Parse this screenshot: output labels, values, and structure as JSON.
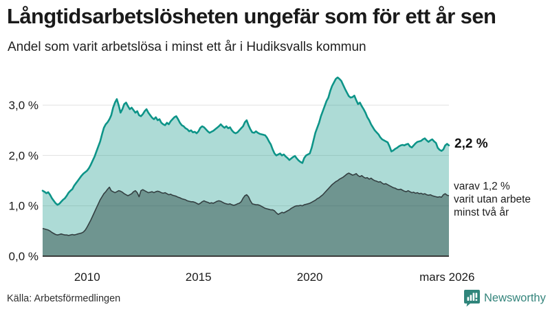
{
  "header": {
    "title": "Långtidsarbetslösheten ungefär som för ett år sen",
    "subtitle": "Andel som varit arbetslösa i minst ett år i Hudiksvalls kommun"
  },
  "annotations": {
    "latest_value": "2,2 %",
    "subset_line1": "varav 1,2 %",
    "subset_line2": "varit utan arbete",
    "subset_line3": "minst två år"
  },
  "footer": {
    "source": "Källa: Arbetsförmedlingen",
    "brand": "Newsworthy",
    "brand_icon": "bar-chart-speech-bubble-icon"
  },
  "colors": {
    "accent_teal": "#0d9488",
    "area_light": "rgba(21,153,138,0.35)",
    "area_dark": "rgba(31,59,55,0.44)",
    "dark_line": "#333f41",
    "grid": "#e0e0e0",
    "baseline": "#3a3a3a",
    "text": "#1a1a1a",
    "brand_teal": "#2f857b"
  },
  "chart_data": {
    "type": "area",
    "title": "Långtidsarbetslösheten ungefär som för ett år sen",
    "subtitle": "Andel som varit arbetslösa i minst ett år i Hudiksvalls kommun",
    "unit": "%",
    "x_domain": [
      2008.0,
      2026.25
    ],
    "x_step_years": 0.0833333,
    "ylim": [
      0,
      3.8
    ],
    "grid": true,
    "legend_position": "right-annotations",
    "y_ticks": [
      {
        "value": 0,
        "label": "0,0 %"
      },
      {
        "value": 1,
        "label": "1,0 %"
      },
      {
        "value": 2,
        "label": "2,0 %"
      },
      {
        "value": 3,
        "label": "3,0 %"
      }
    ],
    "x_ticks": [
      {
        "year": 2010.0,
        "label": "2010"
      },
      {
        "year": 2015.0,
        "label": "2015"
      },
      {
        "year": 2020.0,
        "label": "2020"
      },
      {
        "year": 2026.167,
        "label": "mars 2026"
      }
    ],
    "series": [
      {
        "name": "Arbetslösa minst ett år",
        "end_label": "2,2 %",
        "line_color": "#0d9488",
        "fill_color": "rgba(21,153,138,0.35)",
        "values": [
          1.3,
          1.28,
          1.25,
          1.27,
          1.22,
          1.15,
          1.1,
          1.05,
          1.02,
          1.04,
          1.08,
          1.12,
          1.15,
          1.2,
          1.26,
          1.3,
          1.33,
          1.4,
          1.45,
          1.5,
          1.55,
          1.6,
          1.64,
          1.67,
          1.7,
          1.75,
          1.82,
          1.9,
          1.98,
          2.08,
          2.18,
          2.28,
          2.42,
          2.55,
          2.62,
          2.66,
          2.72,
          2.8,
          2.95,
          3.05,
          3.12,
          3.0,
          2.85,
          2.92,
          3.02,
          3.05,
          2.98,
          2.92,
          2.95,
          2.9,
          2.85,
          2.88,
          2.8,
          2.78,
          2.82,
          2.88,
          2.92,
          2.85,
          2.8,
          2.75,
          2.72,
          2.76,
          2.7,
          2.72,
          2.65,
          2.62,
          2.6,
          2.65,
          2.62,
          2.68,
          2.72,
          2.76,
          2.78,
          2.72,
          2.65,
          2.6,
          2.58,
          2.54,
          2.52,
          2.48,
          2.5,
          2.46,
          2.47,
          2.44,
          2.48,
          2.55,
          2.58,
          2.56,
          2.52,
          2.48,
          2.45,
          2.47,
          2.49,
          2.52,
          2.55,
          2.58,
          2.62,
          2.58,
          2.55,
          2.58,
          2.54,
          2.56,
          2.5,
          2.46,
          2.44,
          2.46,
          2.5,
          2.54,
          2.58,
          2.66,
          2.7,
          2.6,
          2.52,
          2.46,
          2.45,
          2.48,
          2.45,
          2.43,
          2.42,
          2.41,
          2.4,
          2.35,
          2.28,
          2.22,
          2.12,
          2.04,
          2.0,
          2.02,
          2.04,
          2.0,
          2.02,
          1.98,
          1.95,
          1.91,
          1.94,
          1.97,
          1.99,
          1.94,
          1.9,
          1.87,
          1.85,
          1.95,
          2.0,
          2.02,
          2.04,
          2.15,
          2.3,
          2.45,
          2.55,
          2.65,
          2.78,
          2.88,
          2.98,
          3.08,
          3.15,
          3.28,
          3.38,
          3.45,
          3.52,
          3.55,
          3.52,
          3.48,
          3.4,
          3.32,
          3.25,
          3.18,
          3.15,
          3.16,
          3.19,
          3.1,
          3.02,
          3.05,
          2.98,
          2.92,
          2.85,
          2.76,
          2.7,
          2.62,
          2.56,
          2.5,
          2.46,
          2.42,
          2.36,
          2.32,
          2.3,
          2.28,
          2.26,
          2.18,
          2.08,
          2.1,
          2.13,
          2.15,
          2.18,
          2.2,
          2.21,
          2.2,
          2.22,
          2.23,
          2.18,
          2.16,
          2.2,
          2.24,
          2.27,
          2.28,
          2.29,
          2.32,
          2.34,
          2.3,
          2.27,
          2.3,
          2.32,
          2.28,
          2.25,
          2.15,
          2.11,
          2.09,
          2.12,
          2.2,
          2.23,
          2.2
        ]
      },
      {
        "name": "varav utan arbete minst två år",
        "end_label": "varav 1,2 % varit utan arbete minst två år",
        "line_color": "#333f41",
        "fill_color": "rgba(31,59,55,0.44)",
        "values": [
          0.55,
          0.54,
          0.53,
          0.52,
          0.5,
          0.47,
          0.45,
          0.43,
          0.42,
          0.43,
          0.44,
          0.43,
          0.42,
          0.42,
          0.41,
          0.42,
          0.43,
          0.42,
          0.43,
          0.44,
          0.45,
          0.46,
          0.48,
          0.52,
          0.58,
          0.65,
          0.72,
          0.8,
          0.88,
          0.96,
          1.04,
          1.12,
          1.18,
          1.24,
          1.28,
          1.33,
          1.37,
          1.3,
          1.28,
          1.26,
          1.28,
          1.3,
          1.29,
          1.27,
          1.24,
          1.22,
          1.2,
          1.22,
          1.24,
          1.28,
          1.3,
          1.26,
          1.18,
          1.3,
          1.32,
          1.3,
          1.28,
          1.26,
          1.27,
          1.28,
          1.26,
          1.28,
          1.29,
          1.28,
          1.26,
          1.25,
          1.26,
          1.24,
          1.22,
          1.23,
          1.21,
          1.2,
          1.19,
          1.17,
          1.16,
          1.14,
          1.13,
          1.12,
          1.1,
          1.09,
          1.08,
          1.08,
          1.07,
          1.05,
          1.03,
          1.05,
          1.08,
          1.1,
          1.08,
          1.07,
          1.05,
          1.06,
          1.05,
          1.07,
          1.09,
          1.1,
          1.09,
          1.07,
          1.05,
          1.04,
          1.03,
          1.04,
          1.02,
          1.01,
          1.02,
          1.04,
          1.05,
          1.08,
          1.15,
          1.2,
          1.22,
          1.18,
          1.1,
          1.04,
          1.03,
          1.02,
          1.02,
          1.01,
          0.99,
          0.97,
          0.95,
          0.94,
          0.93,
          0.92,
          0.92,
          0.9,
          0.86,
          0.83,
          0.85,
          0.87,
          0.86,
          0.88,
          0.9,
          0.92,
          0.95,
          0.97,
          0.99,
          1.0,
          1.0,
          1.01,
          1.0,
          1.02,
          1.03,
          1.04,
          1.05,
          1.07,
          1.09,
          1.11,
          1.14,
          1.16,
          1.19,
          1.22,
          1.26,
          1.3,
          1.34,
          1.38,
          1.42,
          1.45,
          1.48,
          1.5,
          1.53,
          1.55,
          1.57,
          1.6,
          1.63,
          1.65,
          1.63,
          1.61,
          1.62,
          1.64,
          1.6,
          1.58,
          1.6,
          1.57,
          1.55,
          1.56,
          1.53,
          1.55,
          1.52,
          1.5,
          1.49,
          1.47,
          1.48,
          1.45,
          1.43,
          1.44,
          1.42,
          1.4,
          1.38,
          1.36,
          1.35,
          1.33,
          1.32,
          1.33,
          1.31,
          1.29,
          1.28,
          1.3,
          1.28,
          1.26,
          1.27,
          1.25,
          1.26,
          1.24,
          1.25,
          1.23,
          1.24,
          1.22,
          1.21,
          1.22,
          1.2,
          1.19,
          1.18,
          1.17,
          1.18,
          1.17,
          1.22,
          1.24,
          1.21,
          1.2
        ]
      }
    ]
  }
}
